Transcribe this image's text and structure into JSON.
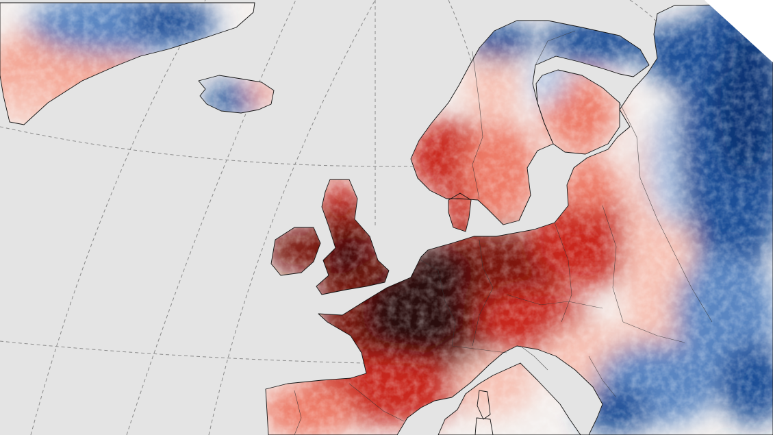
{
  "map": {
    "colors": {
      "ocean": "#e4e4e4",
      "frame": "#ffffff",
      "graticule": "#8a8a8a",
      "coastline": "#111111",
      "border": "#333333",
      "hot_extreme": "#2a0f0c",
      "hot_strong": "#7a1410",
      "hot": "#c9261c",
      "warm": "#ee7b68",
      "warm_light": "#f7c2b5",
      "neutral": "#f4f0ee",
      "cool_light": "#b3c9e6",
      "cool": "#5a86c2",
      "cold": "#1e4f98",
      "cold_strong": "#0b3476"
    },
    "layers": [
      "ocean-background",
      "graticule",
      "temperature-anomaly-land",
      "coastlines",
      "country-borders"
    ]
  }
}
